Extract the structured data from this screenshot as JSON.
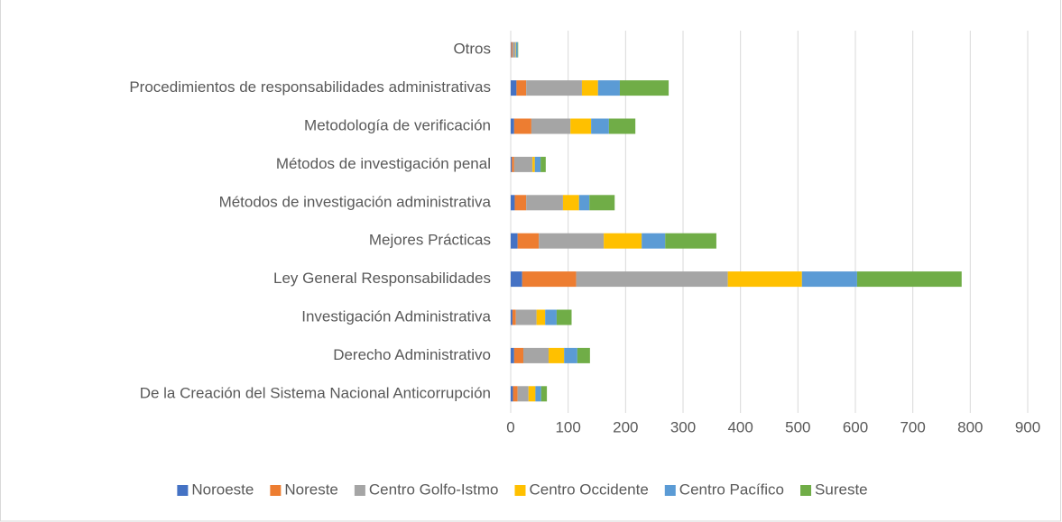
{
  "chart_data": {
    "type": "bar",
    "orientation": "horizontal",
    "stacked": true,
    "categories": [
      "De la Creación del Sistema Nacional Anticorrupción",
      "Derecho Administrativo",
      "Investigación Administrativa",
      "Ley General Responsabilidades",
      "Mejores Prácticas",
      "Métodos de investigación administrativa",
      "Métodos de investigación penal",
      "Metodología de verificación",
      "Procedimientos de responsabilidades administrativas",
      "Otros"
    ],
    "series": [
      {
        "name": "Noroeste",
        "color": "#4472c4",
        "values": [
          4,
          6,
          3,
          20,
          12,
          7,
          2,
          6,
          10,
          1
        ]
      },
      {
        "name": "Noreste",
        "color": "#ed7d31",
        "values": [
          8,
          16,
          6,
          94,
          37,
          20,
          4,
          30,
          17,
          2
        ]
      },
      {
        "name": "Centro Golfo-Istmo",
        "color": "#a5a5a5",
        "values": [
          19,
          44,
          36,
          264,
          113,
          64,
          32,
          68,
          97,
          5
        ]
      },
      {
        "name": "Centro Occidente",
        "color": "#ffc000",
        "values": [
          12,
          27,
          15,
          129,
          66,
          28,
          4,
          36,
          28,
          1
        ]
      },
      {
        "name": "Centro Pacífico",
        "color": "#5b9bd5",
        "values": [
          10,
          23,
          20,
          96,
          41,
          18,
          10,
          31,
          38,
          3
        ]
      },
      {
        "name": "Sureste",
        "color": "#70ad47",
        "values": [
          10,
          22,
          26,
          182,
          89,
          44,
          9,
          46,
          85,
          1
        ]
      }
    ],
    "xlim": [
      0,
      900
    ],
    "xticks": [
      0,
      100,
      200,
      300,
      400,
      500,
      600,
      700,
      800,
      900
    ],
    "grid": true,
    "legend": "bottom"
  }
}
